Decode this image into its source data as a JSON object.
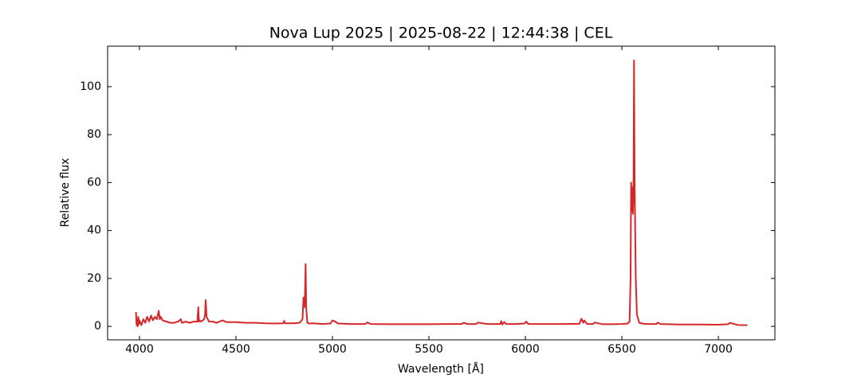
{
  "chart_data": {
    "type": "line",
    "title": "Nova Lup 2025 | 2025-08-22 | 12:44:38 | CEL",
    "x_label": "Wavelength [Å]",
    "y_label": "Relative flux",
    "color": "#d62728",
    "x": [
      3982,
      3985,
      3988,
      3991,
      3994,
      3997,
      4000,
      4010,
      4020,
      4030,
      4040,
      4050,
      4060,
      4070,
      4080,
      4090,
      4100,
      4105,
      4110,
      4120,
      4140,
      4160,
      4180,
      4200,
      4215,
      4220,
      4240,
      4260,
      4280,
      4300,
      4305,
      4308,
      4312,
      4320,
      4335,
      4340,
      4343,
      4348,
      4360,
      4380,
      4400,
      4430,
      4450,
      4500,
      4550,
      4600,
      4650,
      4700,
      4745,
      4750,
      4755,
      4800,
      4830,
      4845,
      4850,
      4855,
      4858,
      4861,
      4864,
      4870,
      4880,
      4900,
      4950,
      4990,
      5000,
      5010,
      5030,
      5100,
      5170,
      5180,
      5200,
      5300,
      5400,
      5500,
      5600,
      5670,
      5680,
      5700,
      5745,
      5755,
      5800,
      5870,
      5875,
      5880,
      5890,
      5900,
      5950,
      5995,
      6005,
      6015,
      6100,
      6200,
      6280,
      6290,
      6300,
      6305,
      6320,
      6350,
      6360,
      6400,
      6450,
      6500,
      6530,
      6540,
      6545,
      6548,
      6551,
      6554,
      6557,
      6560,
      6563,
      6566,
      6569,
      6572,
      6578,
      6590,
      6620,
      6680,
      6685,
      6700,
      6800,
      6900,
      7000,
      7050,
      7060,
      7100,
      7150
    ],
    "values": [
      6,
      0.5,
      3,
      0,
      4,
      1,
      2.5,
      0.5,
      3,
      1.5,
      4,
      2,
      4.5,
      2.5,
      4,
      3,
      6.5,
      3,
      4,
      2.5,
      2,
      1.5,
      1.5,
      2,
      3,
      1.5,
      2,
      1.5,
      2,
      2,
      8,
      2,
      2.5,
      2,
      3,
      5,
      11,
      4,
      2,
      2,
      1.5,
      2.5,
      1.8,
      1.8,
      1.5,
      1.5,
      1.3,
      1.2,
      1.3,
      2.3,
      1.3,
      1.3,
      1.5,
      3,
      12,
      8,
      14,
      26,
      8,
      1.5,
      1.2,
      1.3,
      1,
      1.2,
      2.5,
      2.2,
      1.2,
      1,
      1,
      1.6,
      1,
      0.9,
      0.9,
      0.9,
      1,
      1,
      1.5,
      1,
      1,
      1.6,
      1,
      1,
      2.2,
      0.8,
      1.8,
      1,
      1,
      1.2,
      2,
      1,
      1,
      1,
      1.1,
      3.2,
      1.5,
      2.5,
      1,
      1,
      1.6,
      0.9,
      0.9,
      1,
      1.2,
      2,
      20,
      60,
      48,
      58,
      47,
      55,
      111,
      60,
      40,
      20,
      5,
      1.5,
      1,
      1,
      1.6,
      1,
      0.8,
      0.8,
      0.7,
      0.9,
      1.5,
      0.6,
      0.5
    ],
    "xlim": [
      3835,
      7293
    ],
    "ylim": [
      -5.6,
      116.9
    ],
    "xticks": [
      4000,
      4500,
      5000,
      5500,
      6000,
      6500,
      7000
    ],
    "yticks": [
      0,
      20,
      40,
      60,
      80,
      100
    ],
    "grid": false
  }
}
